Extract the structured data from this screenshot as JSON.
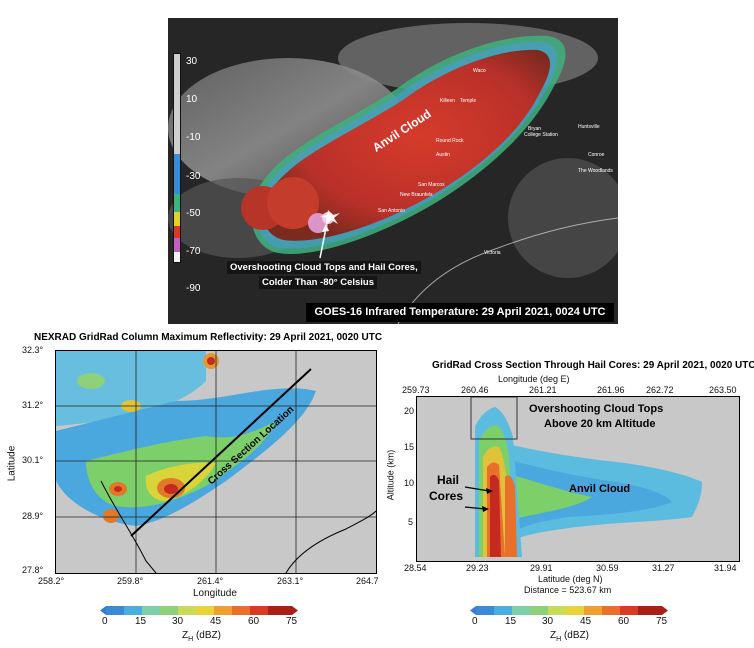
{
  "satellite": {
    "caption": "GOES-16 Infrared Temperature: 29 April 2021, 0024 UTC",
    "anvil_label": "Anvil Cloud",
    "annotation_line1": "Overshooting Cloud Tops and Hail Cores,",
    "annotation_line2": "Colder Than -80° Celsius",
    "colorbar_ticks": [
      "30",
      "10",
      "-10",
      "-30",
      "-50",
      "-70",
      "-90"
    ],
    "cities": [
      "Waco",
      "Killeen",
      "Temple",
      "Bryan",
      "College Station",
      "Huntsville",
      "Round Rock",
      "Austin",
      "Conroe",
      "The Woodlands",
      "San Marcos",
      "New Braunfels",
      "San Antonio",
      "Victoria"
    ]
  },
  "reflectivity_map": {
    "title": "NEXRAD GridRad Column Maximum Reflectivity: 29 April 2021, 0020 UTC",
    "y_ticks": [
      "32.3°",
      "31.2°",
      "30.1°",
      "28.9°",
      "27.8°"
    ],
    "x_ticks": [
      "258.2°",
      "259.8°",
      "261.4°",
      "263.1°",
      "264.7"
    ],
    "xlabel": "Longitude",
    "ylabel": "Latitude",
    "line_label": "Cross Section Location"
  },
  "cross_section": {
    "title": "GridRad Cross Section Through Hail Cores: 29 April 2021, 0020 UTC",
    "top_axis_label": "Longitude (deg E)",
    "top_ticks": [
      "259.73",
      "260.46",
      "261.21",
      "261.96",
      "262.72",
      "263.50"
    ],
    "bottom_ticks": [
      "28.54",
      "29.23",
      "29.91",
      "30.59",
      "31.27",
      "31.94"
    ],
    "xlabel": "Latitude (deg N)",
    "distance_label": "Distance = 523.67 km",
    "ylabel": "Altitude (km)",
    "y_ticks": [
      "20",
      "15",
      "10",
      "5"
    ],
    "annotation_overshoot_line1": "Overshooting Cloud Tops",
    "annotation_overshoot_line2": "Above 20 km Altitude",
    "annotation_hail_line1": "Hail",
    "annotation_hail_line2": "Cores",
    "anvil_label": "Anvil Cloud"
  },
  "colorbar": {
    "ticks": [
      "0",
      "15",
      "30",
      "45",
      "60",
      "75"
    ],
    "label_left": "Z",
    "label_sub": "H",
    "label_right": " (dBZ)"
  },
  "colors": {
    "anvil_red": "#c0392b",
    "gray_bg": "#c8c8c8"
  }
}
